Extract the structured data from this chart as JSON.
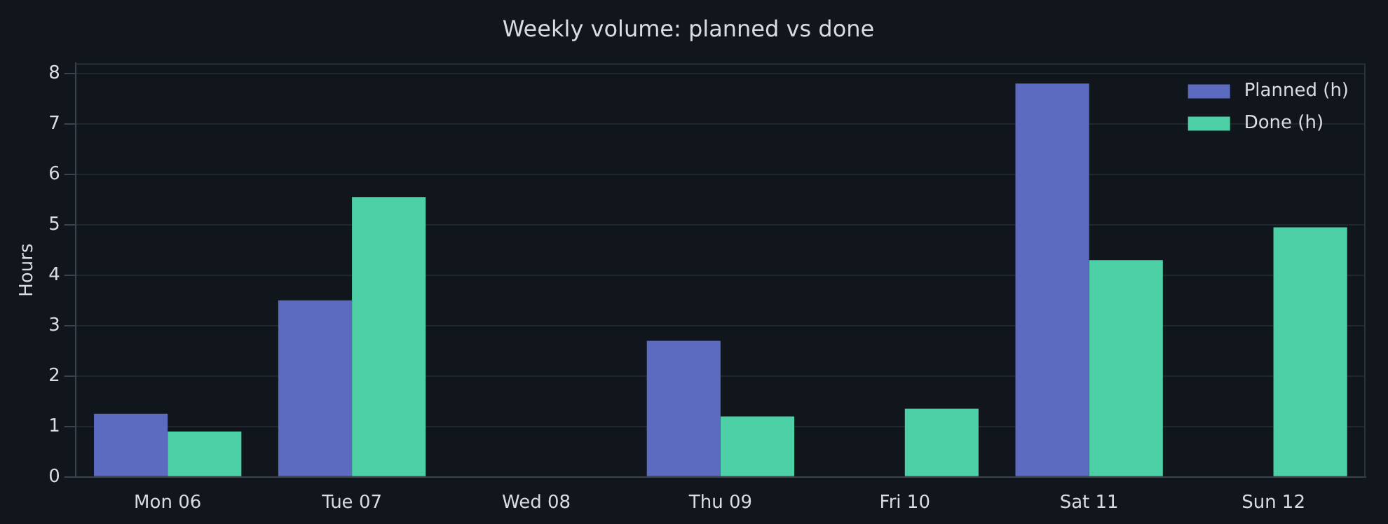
{
  "chart_data": {
    "type": "bar",
    "title": "Weekly volume: planned vs done",
    "ylabel": "Hours",
    "categories": [
      "Mon 06",
      "Tue 07",
      "Wed 08",
      "Thu 09",
      "Fri 10",
      "Sat 11",
      "Sun 12"
    ],
    "series": [
      {
        "name": "Planned (h)",
        "color": "#5c6bc0",
        "values": [
          1.25,
          3.5,
          0,
          2.7,
          0,
          7.8,
          0
        ]
      },
      {
        "name": "Done (h)",
        "color": "#4dd0a5",
        "values": [
          0.9,
          5.55,
          0,
          1.2,
          1.35,
          4.3,
          4.95
        ]
      }
    ],
    "ylim": [
      0,
      8.2
    ],
    "yticks": [
      0,
      1,
      2,
      3,
      4,
      5,
      6,
      7,
      8
    ],
    "grid": "y",
    "legend": "top right"
  }
}
